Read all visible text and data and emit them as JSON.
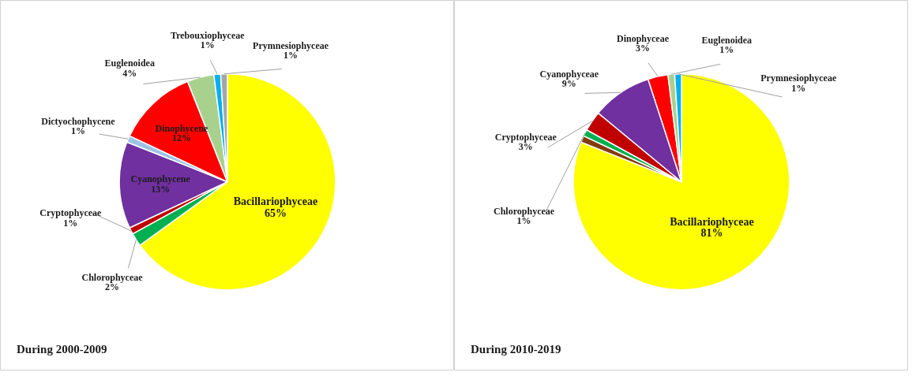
{
  "chart_data": [
    {
      "type": "pie",
      "title": "During 2000-2009",
      "categories": [
        "Bacillariophyceae",
        "Chlorophyceae",
        "Cryptophyceae",
        "Cyanophycene",
        "Dictyochophycene",
        "Dinophycene",
        "Euglenoidea",
        "Trebouxiophyceae",
        "Prymnesiophyceae"
      ],
      "values": [
        65,
        2,
        1,
        13,
        1,
        12,
        4,
        1,
        1
      ],
      "value_labels": [
        "65%",
        "2%",
        "1%",
        "13%",
        "1%",
        "12%",
        "4%",
        "1%",
        "1%"
      ],
      "colors": [
        "#ffff00",
        "#00b050",
        "#c00000",
        "#7030a0",
        "#9dc3e6",
        "#ff0000",
        "#a9d18e",
        "#00b0f0",
        "#a6a6a6"
      ]
    },
    {
      "type": "pie",
      "title": "During 2010-2019",
      "categories": [
        "Bacillariophyceae",
        null,
        "Chlorophyceae",
        "Cryptophyceae",
        "Cyanophyceae",
        "Dinophyceae",
        "Euglenoidea",
        "Prymnesiophyceae"
      ],
      "values": [
        81,
        1,
        1,
        3,
        9,
        3,
        1,
        1
      ],
      "value_labels": [
        "81%",
        null,
        "1%",
        "3%",
        "9%",
        "3%",
        "1%",
        "1%"
      ],
      "colors": [
        "#ffff00",
        "#843c0c",
        "#00b050",
        "#c00000",
        "#7030a0",
        "#ff0000",
        "#a9d18e",
        "#00b0f0"
      ]
    }
  ]
}
